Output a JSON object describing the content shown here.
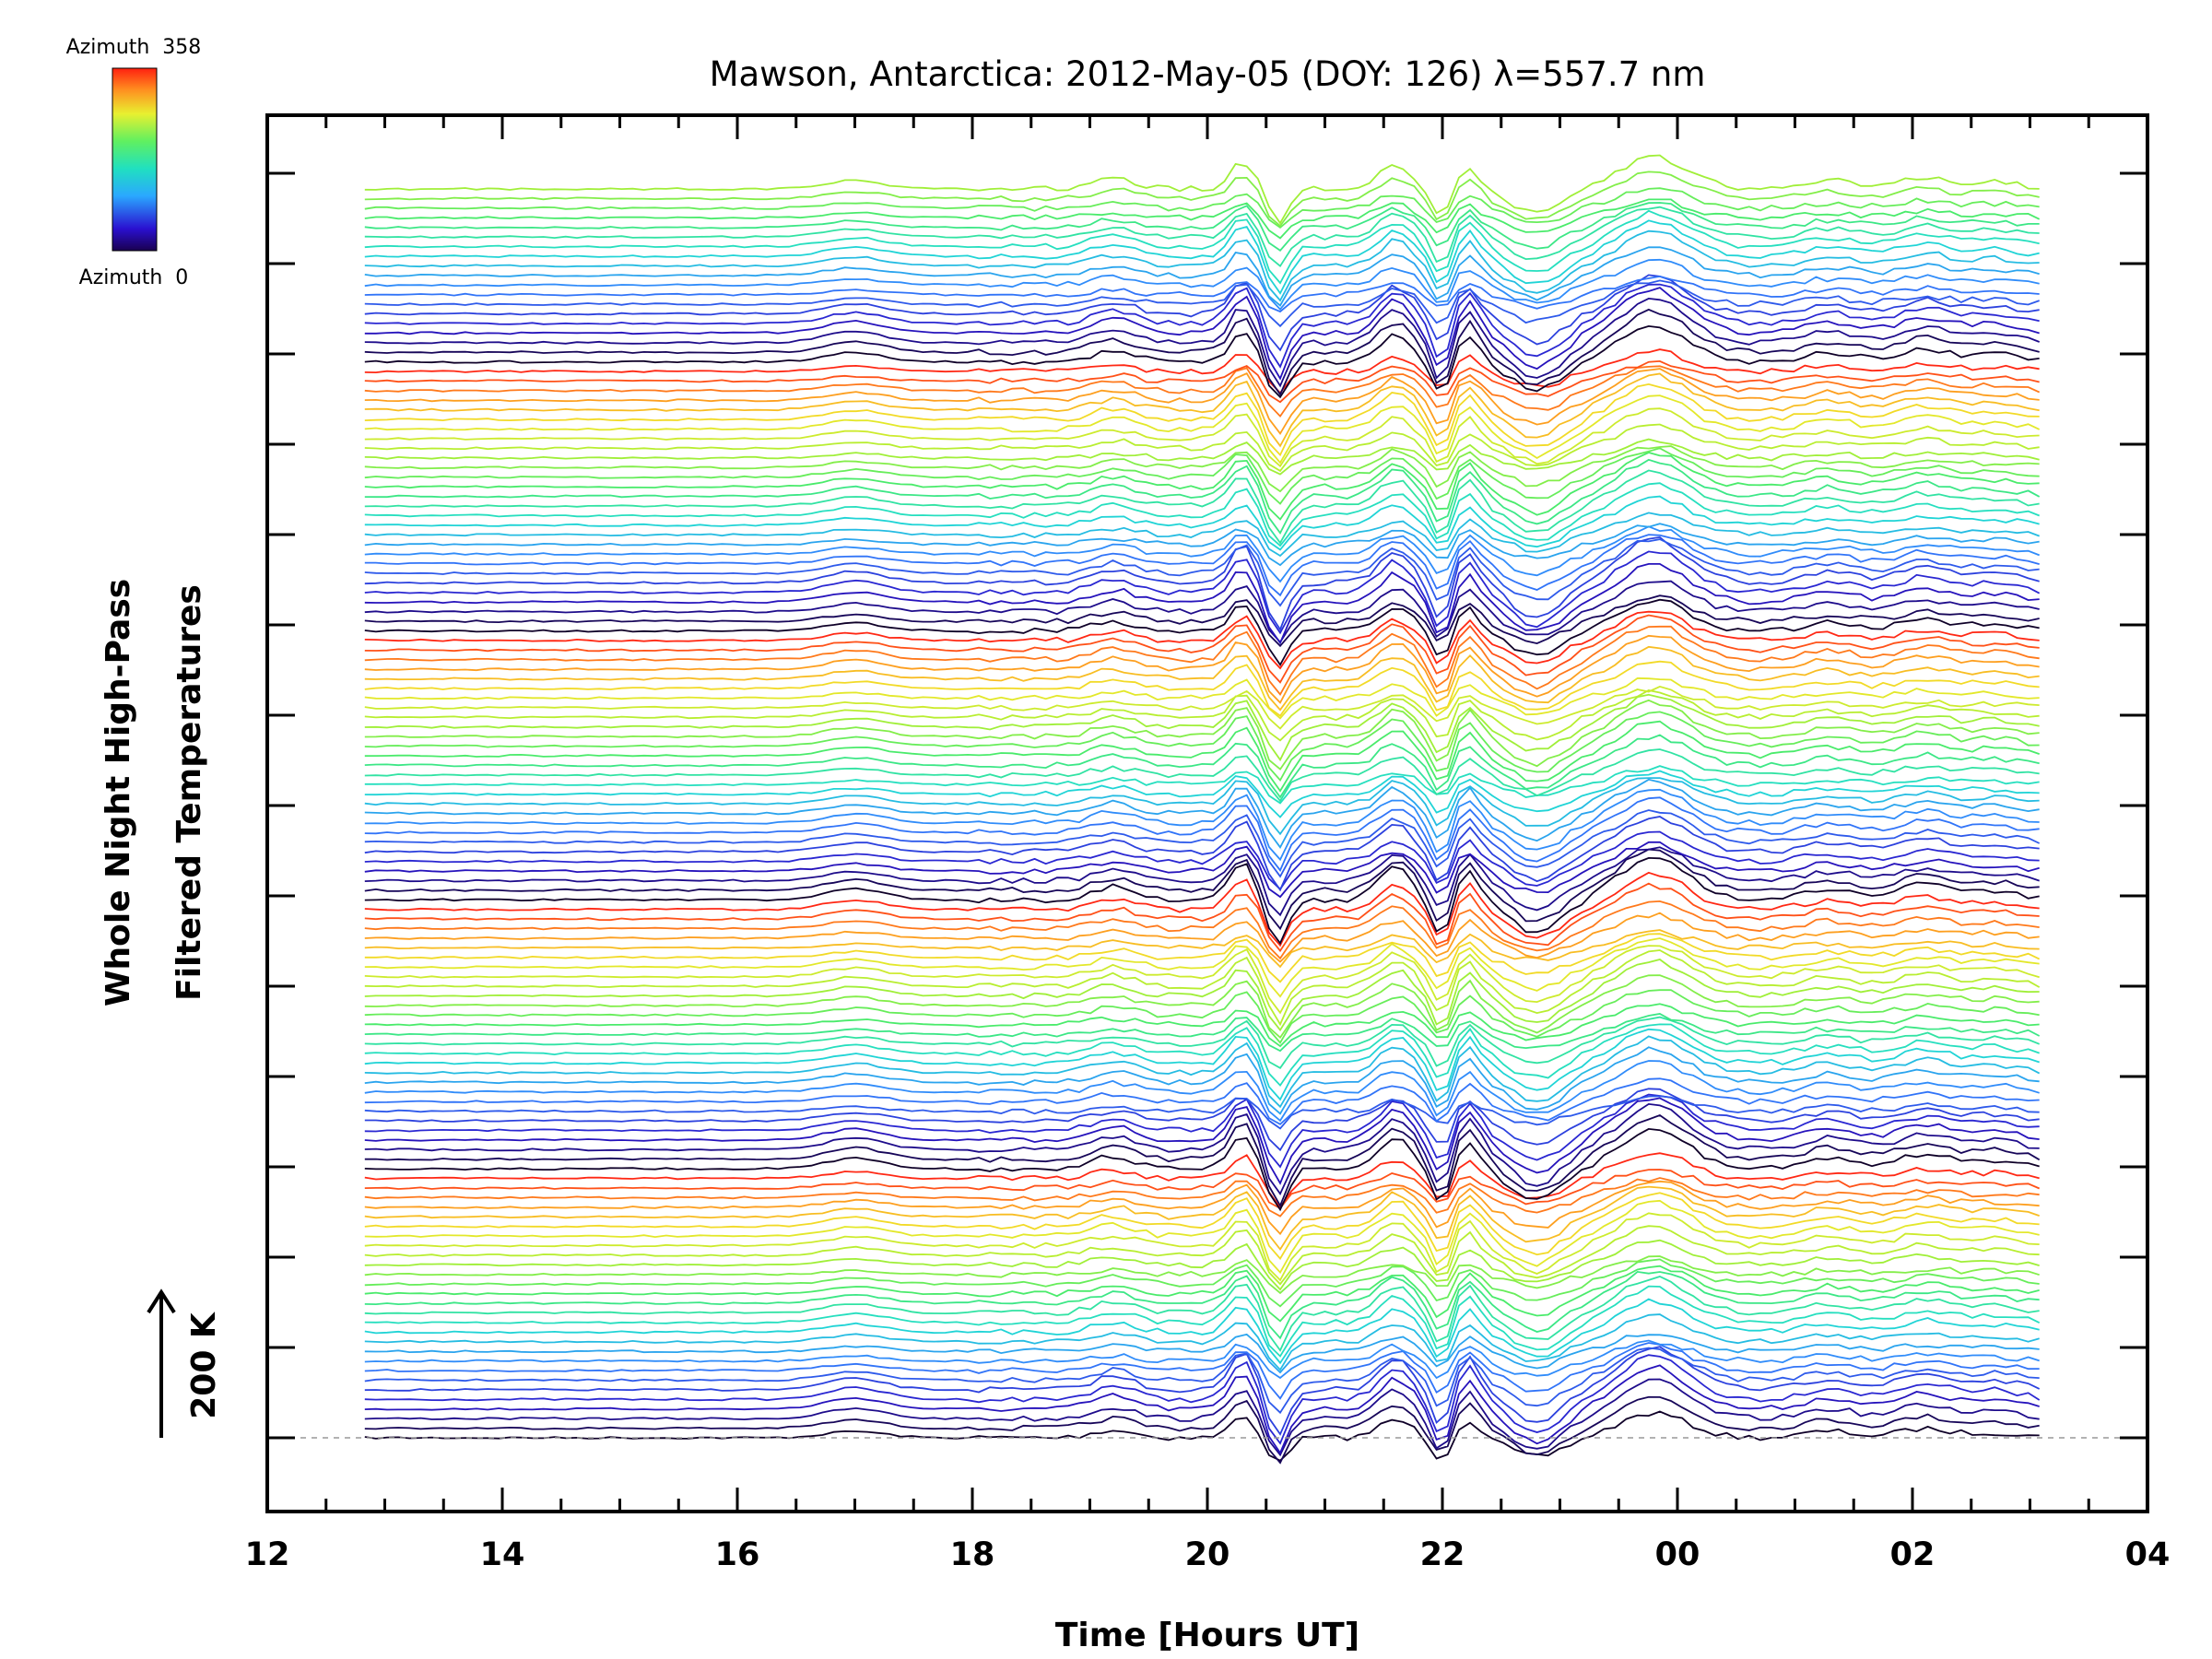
{
  "chart_data": {
    "type": "line",
    "title": "Mawson, Antarctica: 2012-May-05 (DOY: 126) λ=557.7 nm",
    "xlabel": "Time [Hours UT]",
    "ylabel": [
      "Whole Night High-Pass",
      "Filtered Temperatures"
    ],
    "scale_bar_label": "200 K",
    "x_tick_labels": [
      "12",
      "14",
      "16",
      "18",
      "20",
      "22",
      "00",
      "02",
      "04"
    ],
    "x_tick_hours": [
      12,
      14,
      16,
      18,
      20,
      22,
      24,
      26,
      28
    ],
    "xlim": [
      12,
      28
    ],
    "x_start": 12.83,
    "x_end": 27.08,
    "y_major_tick_count": 15,
    "baseline_dashed": true,
    "colorbar": {
      "top_label": "Azimuth  358",
      "bottom_label": "Azimuth  0",
      "min": 0,
      "max": 358,
      "colormap": "rainbow"
    },
    "series_count": 131,
    "series_cycle_length": 28,
    "grid": false,
    "legend": "top-left"
  }
}
